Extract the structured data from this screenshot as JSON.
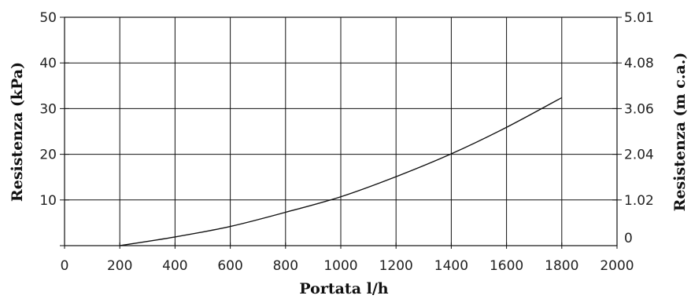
{
  "chart_data": {
    "type": "line",
    "title": "",
    "xlabel": "Portata l/h",
    "ylabel": "Resistenza (kPa)",
    "y2label": "Resistenza (m c.a.)",
    "xlim": [
      0,
      2000
    ],
    "ylim": [
      0,
      50
    ],
    "x_ticks": [
      "0",
      "200",
      "400",
      "600",
      "800",
      "1000",
      "1200",
      "1400",
      "1600",
      "1800",
      "2000"
    ],
    "y_ticks": [
      "10",
      "20",
      "30",
      "40",
      "50"
    ],
    "y2_ticks": [
      "0",
      "1.02",
      "2.04",
      "3.06",
      "4.08",
      "5.01"
    ],
    "grid": true,
    "series": [
      {
        "x": [
          200,
          400,
          600,
          800,
          1000,
          1200,
          1400,
          1600,
          1800
        ],
        "y": [
          0,
          1.9,
          4.2,
          7.3,
          10.7,
          15.1,
          20.1,
          25.9,
          32.4
        ]
      }
    ],
    "colors": {
      "line": "#111111",
      "grid": "#111111",
      "text": "#222222"
    }
  }
}
